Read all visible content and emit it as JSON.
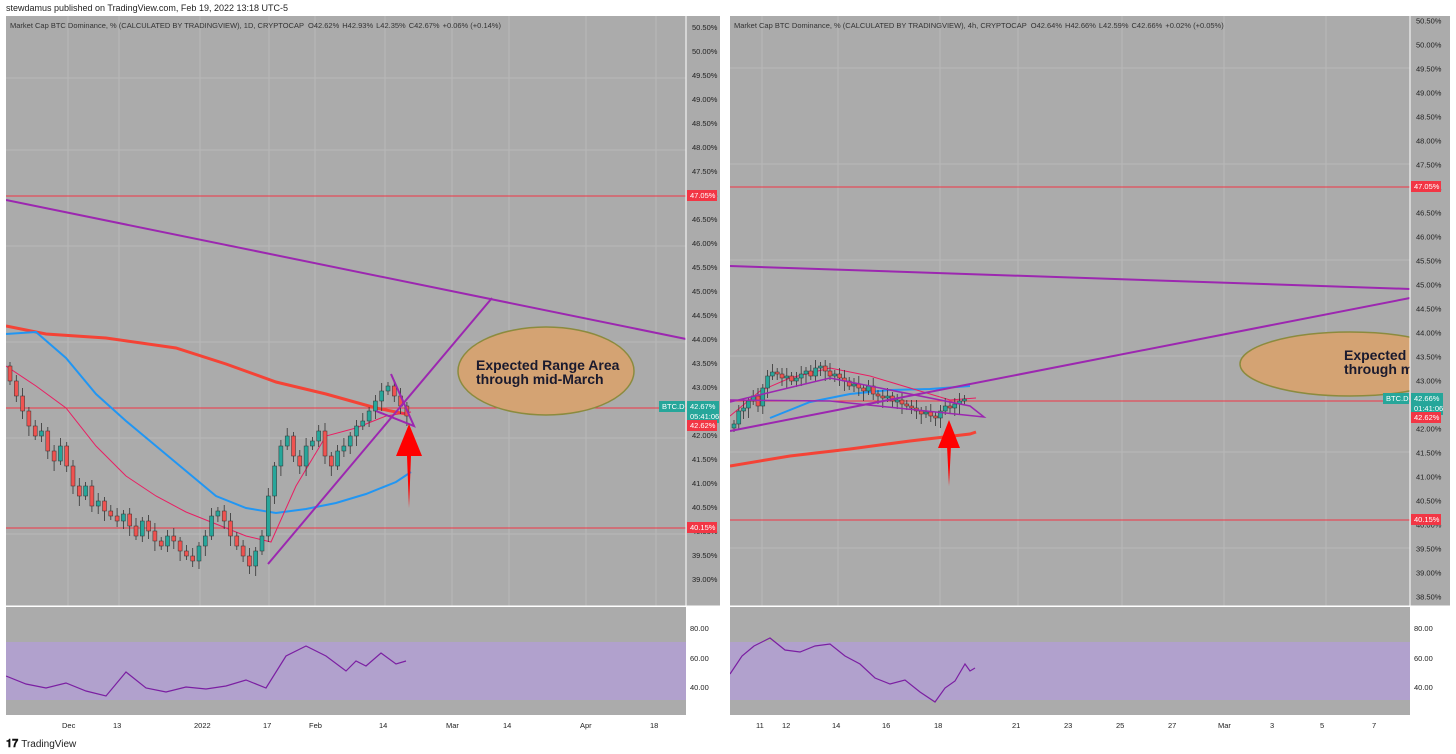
{
  "header": {
    "published": "stewdamus published on TradingView.com, Feb 19, 2022 13:18 UTC-5"
  },
  "footer": {
    "logo": "𝟏𝟕",
    "brand": "TradingView"
  },
  "colors": {
    "panel_bg": "#ababab",
    "grid": "#b6b6b6",
    "up": "#26a69a",
    "down": "#ef5350",
    "hline": "#f23645",
    "trend": "#9c27b0",
    "ma_fast": "#2196f3",
    "ma_slow": "#f44336",
    "rsi_fill": "#b39ddb",
    "ellipse": "#d4a373",
    "arrow": "#ff0000",
    "last_price": "#26a69a"
  },
  "panes": [
    {
      "title": "Market Cap BTC Dominance, % (CALCULATED BY TRADINGVIEW), 1D, CRYPTOCAP",
      "ohlc": {
        "O": "42.62%",
        "H": "42.93%",
        "L": "42.35%",
        "C": "42.67%",
        "chg": "+0.06% (+0.14%)"
      },
      "y_ticks": [
        "50.50%",
        "50.00%",
        "49.50%",
        "49.00%",
        "48.50%",
        "48.00%",
        "47.50%",
        "47.00%",
        "46.50%",
        "46.00%",
        "45.50%",
        "45.00%",
        "44.50%",
        "44.00%",
        "43.50%",
        "43.00%",
        "42.50%",
        "42.00%",
        "41.50%",
        "41.00%",
        "40.50%",
        "40.00%",
        "39.50%",
        "39.00%"
      ],
      "hlines": [
        "47.05%",
        "40.15%"
      ],
      "symbol": "BTC.D",
      "last": "42.67%",
      "countdown": "05:41:06",
      "red_label": "42.62%",
      "annotation": [
        "Expected Range Area",
        "through mid-March"
      ],
      "x_ticks": [
        "Dec",
        "13",
        "2022",
        "17",
        "Feb",
        "14",
        "Mar",
        "14",
        "Apr",
        "18"
      ],
      "rsi_ticks": [
        "80.00",
        "60.00",
        "40.00"
      ]
    },
    {
      "title": "Market Cap BTC Dominance, % (CALCULATED BY TRADINGVIEW), 4h, CRYPTOCAP",
      "ohlc": {
        "O": "42.64%",
        "H": "42.66%",
        "L": "42.59%",
        "C": "42.66%",
        "chg": "+0.02% (+0.05%)"
      },
      "y_ticks": [
        "50.50%",
        "50.00%",
        "49.50%",
        "49.00%",
        "48.50%",
        "48.00%",
        "47.50%",
        "47.00%",
        "46.50%",
        "46.00%",
        "45.50%",
        "45.00%",
        "44.50%",
        "44.00%",
        "43.50%",
        "43.00%",
        "42.50%",
        "42.00%",
        "41.50%",
        "41.00%",
        "40.50%",
        "40.00%",
        "39.50%",
        "39.00%",
        "38.50%"
      ],
      "hlines": [
        "47.05%",
        "40.15%"
      ],
      "symbol": "BTC.D",
      "last": "42.66%",
      "countdown": "01:41:06",
      "red_label": "42.62%",
      "annotation": [
        "Expected",
        "through m"
      ],
      "x_ticks": [
        "11",
        "12",
        "14",
        "16",
        "18",
        "21",
        "23",
        "25",
        "27",
        "Mar",
        "3",
        "5",
        "7"
      ],
      "rsi_ticks": [
        "80.00",
        "60.00",
        "40.00"
      ]
    }
  ]
}
